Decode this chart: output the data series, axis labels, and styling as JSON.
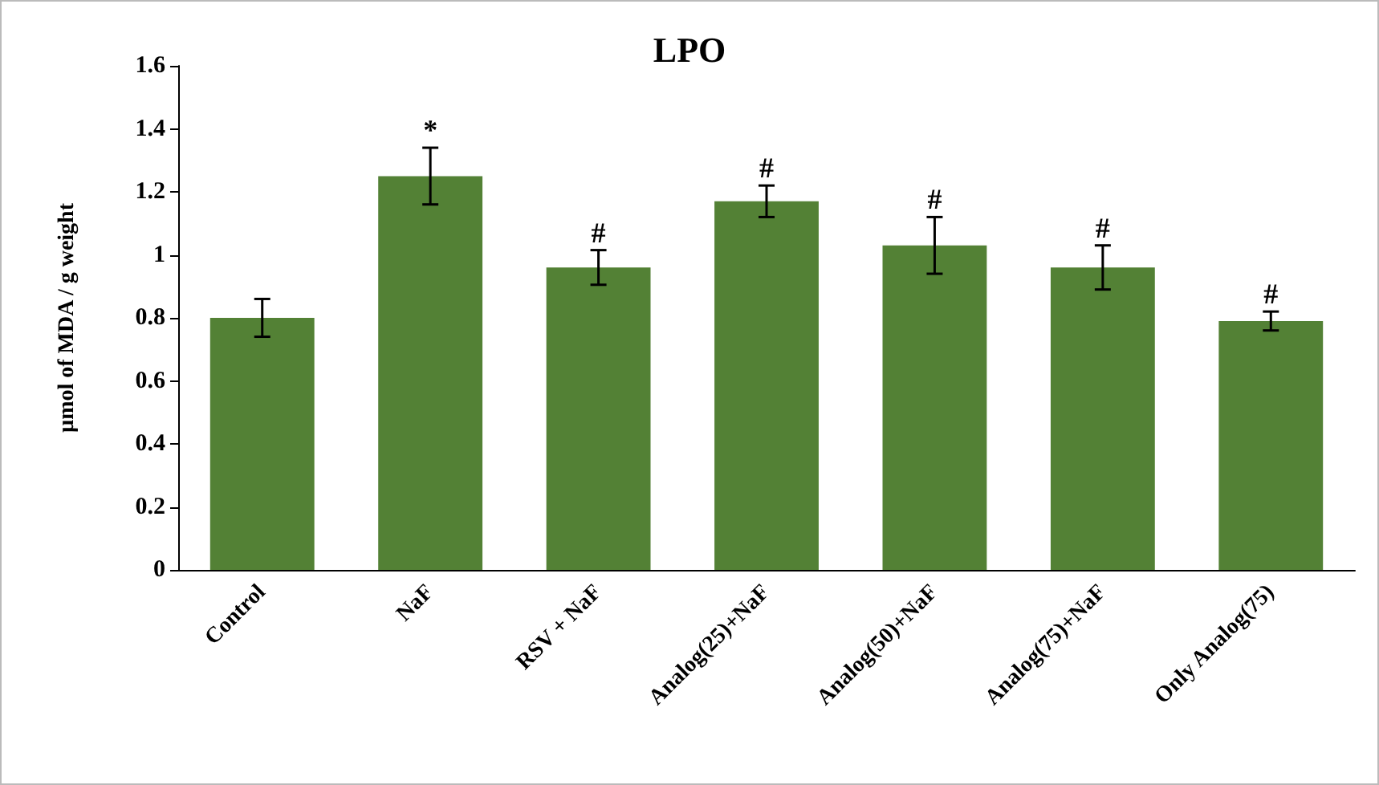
{
  "chart_data": {
    "type": "bar",
    "title": "LPO",
    "ylabel": "µmol of MDA / g weight",
    "categories": [
      "Control",
      "NaF",
      "RSV + NaF",
      "Analog(25)+NaF",
      "Analog(50)+NaF",
      "Analog(75)+NaF",
      "Only Analog(75)"
    ],
    "values": [
      0.8,
      1.25,
      0.96,
      1.17,
      1.03,
      0.96,
      0.79
    ],
    "errors": [
      0.06,
      0.09,
      0.055,
      0.05,
      0.09,
      0.07,
      0.03
    ],
    "color": "#538135",
    "ylim": [
      0,
      1.6
    ],
    "yticks": [
      0,
      0.2,
      0.4,
      0.6,
      0.8,
      1,
      1.2,
      1.4,
      1.6
    ],
    "grid": false,
    "annotations": [
      {
        "text": "*",
        "x": "NaF",
        "y": 1.34
      },
      {
        "text": "#",
        "x": "RSV + NaF",
        "y": 1.015
      },
      {
        "text": "#",
        "x": "Analog(25)+NaF",
        "y": 1.22
      },
      {
        "text": "#",
        "x": "Analog(50)+NaF",
        "y": 1.12
      },
      {
        "text": "#",
        "x": "Analog(75)+NaF",
        "y": 1.03
      },
      {
        "text": "#",
        "x": "Only Analog(75)",
        "y": 0.82
      }
    ]
  }
}
